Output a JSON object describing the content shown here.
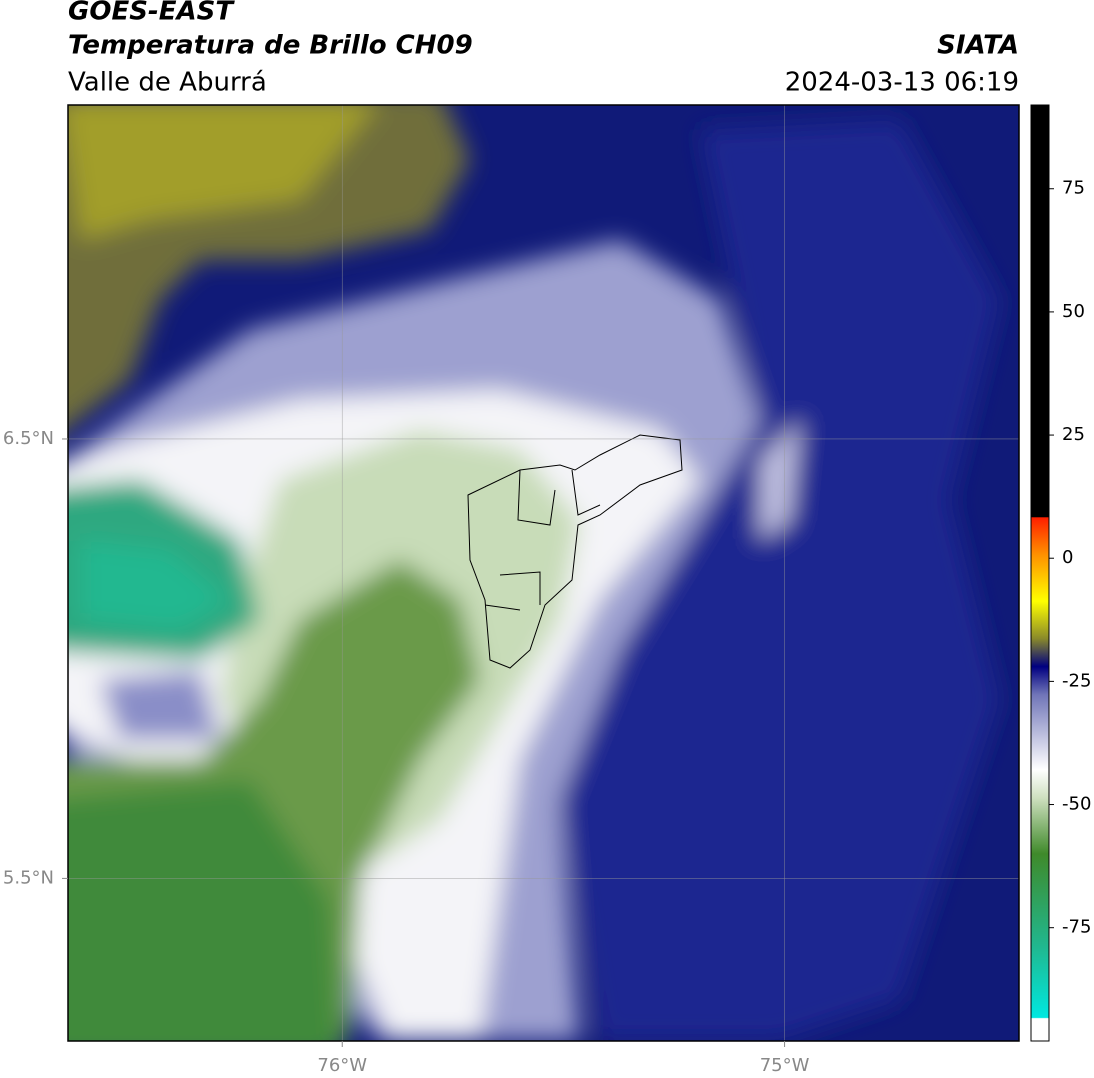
{
  "header": {
    "title": "GOES-EAST",
    "subtitle": "Temperatura de Brillo CH09",
    "region": "Valle de Aburrá",
    "source": "SIATA",
    "timestamp": "2024-03-13 06:19"
  },
  "map": {
    "lon_range": [
      -76.62,
      -74.47
    ],
    "lat_range": [
      5.13,
      7.26
    ],
    "lon_ticks": [
      {
        "value": -76,
        "label": "76°W"
      },
      {
        "value": -75,
        "label": "75°W"
      }
    ],
    "lat_ticks": [
      {
        "value": 6.5,
        "label": "6.5°N"
      },
      {
        "value": 5.5,
        "label": "5.5°N"
      }
    ]
  },
  "colorbar": {
    "range": [
      -98,
      92
    ],
    "ticks": [
      75,
      50,
      25,
      0,
      -25,
      -50,
      -75
    ]
  }
}
